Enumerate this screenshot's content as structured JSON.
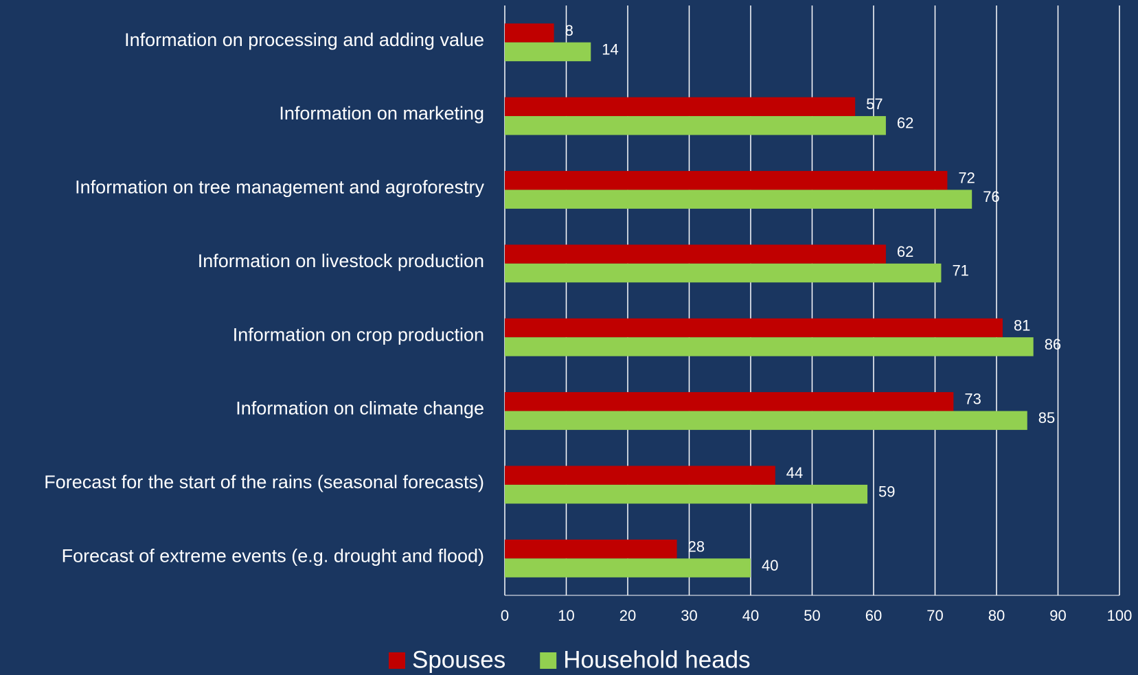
{
  "chart_data": {
    "type": "hbar",
    "categories": [
      "Information on processing and adding value",
      "Information on marketing",
      "Information on tree management and agroforestry",
      "Information on livestock production",
      "Information on crop production",
      "Information on climate change",
      "Forecast for the start of the rains (seasonal forecasts)",
      "Forecast of extreme events (e.g. drought and flood)"
    ],
    "series": [
      {
        "name": "Spouses",
        "color": "#c00000",
        "values": [
          8,
          57,
          72,
          62,
          81,
          73,
          44,
          28
        ]
      },
      {
        "name": "Household heads",
        "color": "#92d050",
        "values": [
          14,
          62,
          76,
          71,
          86,
          85,
          59,
          40
        ]
      }
    ],
    "xlim": [
      0,
      100
    ],
    "xticks": [
      0,
      10,
      20,
      30,
      40,
      50,
      60,
      70,
      80,
      90,
      100
    ],
    "grid": true,
    "legend": "bottom"
  }
}
